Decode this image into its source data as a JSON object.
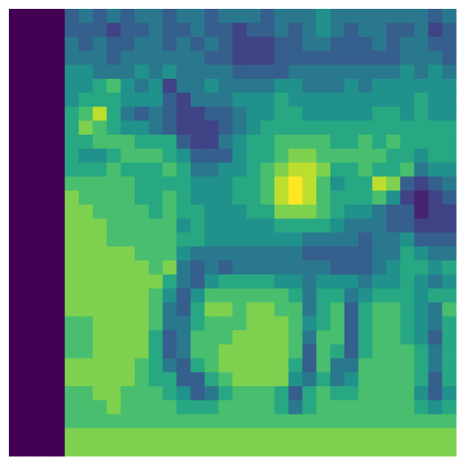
{
  "chart_data": {
    "type": "heatmap",
    "zlim": [
      0,
      1
    ],
    "colorscale": [
      "#440154",
      "#472d7b",
      "#3b528b",
      "#2c728e",
      "#21918c",
      "#28ae80",
      "#5ec962",
      "#addc30",
      "#fde725"
    ],
    "z": [
      [
        0,
        0,
        0,
        0,
        0.3,
        0.4,
        0.3,
        0.4,
        0.3,
        0.4,
        0.4,
        0.3,
        0.4,
        0.4,
        0.3,
        0.4,
        0.4,
        0.4,
        0.3,
        0.4,
        0.4,
        0.4,
        0.5,
        0.4,
        0.4,
        0.4,
        0.4,
        0.4,
        0.4,
        0.4,
        0.3,
        0.4
      ],
      [
        0,
        0,
        0,
        0,
        0.3,
        0.3,
        0.3,
        0.2,
        0.3,
        0.3,
        0.4,
        0.3,
        0.3,
        0.4,
        0.3,
        0.3,
        0.2,
        0.3,
        0.3,
        0.4,
        0.3,
        0.4,
        0.5,
        0.4,
        0.3,
        0.4,
        0.4,
        0.3,
        0.3,
        0.4,
        0.2,
        0.3
      ],
      [
        0,
        0,
        0,
        0,
        0.4,
        0.3,
        0.4,
        0.3,
        0.3,
        0.4,
        0.4,
        0.3,
        0.4,
        0.3,
        0.4,
        0.3,
        0.2,
        0.2,
        0.2,
        0.3,
        0.3,
        0.4,
        0.4,
        0.3,
        0.3,
        0.3,
        0.4,
        0.3,
        0.4,
        0.4,
        0.3,
        0.3
      ],
      [
        0,
        0,
        0,
        0,
        0.4,
        0.4,
        0.4,
        0.3,
        0.4,
        0.4,
        0.4,
        0.4,
        0.4,
        0.4,
        0.3,
        0.3,
        0.2,
        0.2,
        0.2,
        0.3,
        0.3,
        0.3,
        0.3,
        0.3,
        0.3,
        0.3,
        0.3,
        0.3,
        0.4,
        0.4,
        0.4,
        0.3
      ],
      [
        0,
        0,
        0,
        0,
        0.5,
        0.5,
        0.4,
        0.4,
        0.4,
        0.5,
        0.4,
        0.5,
        0.4,
        0.4,
        0.4,
        0.4,
        0.3,
        0.3,
        0.3,
        0.3,
        0.4,
        0.4,
        0.4,
        0.4,
        0.4,
        0.4,
        0.4,
        0.4,
        0.5,
        0.4,
        0.5,
        0.4
      ],
      [
        0,
        0,
        0,
        0,
        0.5,
        0.5,
        0.6,
        0.7,
        0.5,
        0.4,
        0.5,
        0.2,
        0.4,
        0.4,
        0.5,
        0.4,
        0.4,
        0.4,
        0.4,
        0.5,
        0.5,
        0.4,
        0.4,
        0.4,
        0.5,
        0.4,
        0.5,
        0.5,
        0.5,
        0.5,
        0.5,
        0.5
      ],
      [
        0,
        0,
        0,
        0,
        0.5,
        0.6,
        0.6,
        0.6,
        0.5,
        0.5,
        0.5,
        0.3,
        0.2,
        0.4,
        0.4,
        0.4,
        0.5,
        0.5,
        0.5,
        0.6,
        0.5,
        0.5,
        0.5,
        0.5,
        0.5,
        0.5,
        0.5,
        0.5,
        0.5,
        0.6,
        0.5,
        0.5
      ],
      [
        0,
        0,
        0,
        0,
        0.6,
        0.7,
        0.9,
        0.6,
        0.4,
        0.3,
        0.4,
        0.3,
        0.2,
        0.2,
        0.3,
        0.3,
        0.4,
        0.5,
        0.5,
        0.6,
        0.6,
        0.5,
        0.5,
        0.5,
        0.5,
        0.5,
        0.6,
        0.6,
        0.5,
        0.6,
        0.5,
        0.5
      ],
      [
        0,
        0,
        0,
        0,
        0.6,
        0.8,
        0.7,
        0.6,
        0.5,
        0.5,
        0.4,
        0.3,
        0.2,
        0.2,
        0.2,
        0.3,
        0.4,
        0.5,
        0.6,
        0.6,
        0.6,
        0.6,
        0.6,
        0.6,
        0.6,
        0.6,
        0.6,
        0.6,
        0.6,
        0.6,
        0.6,
        0.6
      ],
      [
        0,
        0,
        0,
        0,
        0.6,
        0.6,
        0.7,
        0.7,
        0.7,
        0.6,
        0.6,
        0.6,
        0.3,
        0.2,
        0.2,
        0.4,
        0.5,
        0.6,
        0.6,
        0.7,
        0.7,
        0.7,
        0.7,
        0.6,
        0.6,
        0.7,
        0.6,
        0.7,
        0.6,
        0.6,
        0.6,
        0.6
      ],
      [
        0,
        0,
        0,
        0,
        0.6,
        0.5,
        0.5,
        0.6,
        0.7,
        0.7,
        0.7,
        0.6,
        0.5,
        0.3,
        0.3,
        0.3,
        0.5,
        0.6,
        0.6,
        0.7,
        0.8,
        0.8,
        0.7,
        0.7,
        0.7,
        0.7,
        0.7,
        0.6,
        0.6,
        0.5,
        0.6,
        0.6
      ],
      [
        0,
        0,
        0,
        0,
        0.6,
        0.6,
        0.6,
        0.7,
        0.6,
        0.6,
        0.6,
        0.7,
        0.6,
        0.4,
        0.4,
        0.5,
        0.5,
        0.6,
        0.7,
        0.8,
        0.9,
        0.9,
        0.8,
        0.6,
        0.6,
        0.7,
        0.6,
        0.6,
        0.7,
        0.4,
        0.5,
        0.5
      ],
      [
        0,
        0,
        0,
        0,
        0.7,
        0.7,
        0.7,
        0.7,
        0.7,
        0.6,
        0.6,
        0.6,
        0.6,
        0.5,
        0.5,
        0.5,
        0.6,
        0.6,
        0.7,
        0.9,
        1,
        0.9,
        0.7,
        0.5,
        0.6,
        0.6,
        0.9,
        0.8,
        0.3,
        0.2,
        0.3,
        0.4
      ],
      [
        0,
        0,
        0,
        0,
        0.8,
        0.7,
        0.7,
        0.7,
        0.7,
        0.6,
        0.6,
        0.7,
        0.6,
        0.5,
        0.5,
        0.5,
        0.6,
        0.6,
        0.7,
        0.9,
        1,
        0.9,
        0.7,
        0.6,
        0.6,
        0.6,
        0.7,
        0.5,
        0.2,
        0.1,
        0.2,
        0.3
      ],
      [
        0,
        0,
        0,
        0,
        0.8,
        0.8,
        0.7,
        0.7,
        0.7,
        0.7,
        0.6,
        0.7,
        0.6,
        0.6,
        0.5,
        0.5,
        0.5,
        0.6,
        0.6,
        0.8,
        0.8,
        0.8,
        0.7,
        0.6,
        0.5,
        0.5,
        0.4,
        0.3,
        0.3,
        0.1,
        0.2,
        0.2
      ],
      [
        0,
        0,
        0,
        0,
        0.8,
        0.8,
        0.8,
        0.7,
        0.7,
        0.7,
        0.7,
        0.7,
        0.5,
        0.6,
        0.5,
        0.5,
        0.5,
        0.5,
        0.5,
        0.6,
        0.6,
        0.6,
        0.6,
        0.5,
        0.4,
        0.4,
        0.4,
        0.3,
        0.3,
        0.2,
        0.2,
        0.2
      ],
      [
        0,
        0,
        0,
        0,
        0.8,
        0.8,
        0.8,
        0.7,
        0.7,
        0.7,
        0.7,
        0.7,
        0.6,
        0.6,
        0.5,
        0.5,
        0.5,
        0.5,
        0.5,
        0.5,
        0.5,
        0.4,
        0.4,
        0.4,
        0.4,
        0.3,
        0.4,
        0.4,
        0.5,
        0.3,
        0.3,
        0.3
      ],
      [
        0,
        0,
        0,
        0,
        0.8,
        0.8,
        0.8,
        0.8,
        0.8,
        0.7,
        0.7,
        0.7,
        0.5,
        0.4,
        0.4,
        0.4,
        0.4,
        0.4,
        0.4,
        0.4,
        0.4,
        0.3,
        0.3,
        0.3,
        0.3,
        0.3,
        0.4,
        0.4,
        0.6,
        0.5,
        0.4,
        0.4
      ],
      [
        0,
        0,
        0,
        0,
        0.8,
        0.8,
        0.8,
        0.8,
        0.8,
        0.8,
        0.7,
        0.8,
        0.4,
        0.3,
        0.4,
        0.3,
        0.4,
        0.4,
        0.4,
        0.4,
        0.4,
        0.4,
        0.4,
        0.3,
        0.3,
        0.3,
        0.4,
        0.5,
        0.6,
        0.6,
        0.5,
        0.6
      ],
      [
        0,
        0,
        0,
        0,
        0.8,
        0.8,
        0.8,
        0.8,
        0.8,
        0.8,
        0.8,
        0.6,
        0.4,
        0.3,
        0.5,
        0.6,
        0.6,
        0.6,
        0.6,
        0.5,
        0.5,
        0.4,
        0.5,
        0.5,
        0.5,
        0.4,
        0.5,
        0.5,
        0.6,
        0.5,
        0.4,
        0.5
      ],
      [
        0,
        0,
        0,
        0,
        0.8,
        0.8,
        0.8,
        0.8,
        0.8,
        0.8,
        0.7,
        0.5,
        0.3,
        0.5,
        0.7,
        0.7,
        0.7,
        0.7,
        0.7,
        0.7,
        0.6,
        0.4,
        0.6,
        0.6,
        0.4,
        0.5,
        0.6,
        0.6,
        0.6,
        0.5,
        0.6,
        0.6
      ],
      [
        0,
        0,
        0,
        0,
        0.8,
        0.8,
        0.8,
        0.8,
        0.8,
        0.8,
        0.7,
        0.4,
        0.3,
        0.6,
        0.8,
        0.8,
        0.7,
        0.8,
        0.8,
        0.7,
        0.7,
        0.4,
        0.6,
        0.7,
        0.3,
        0.6,
        0.7,
        0.7,
        0.6,
        0.5,
        0.4,
        0.7
      ],
      [
        0,
        0,
        0,
        0,
        0.7,
        0.7,
        0.8,
        0.8,
        0.8,
        0.8,
        0.7,
        0.4,
        0.4,
        0.6,
        0.7,
        0.7,
        0.7,
        0.8,
        0.8,
        0.8,
        0.7,
        0.5,
        0.6,
        0.7,
        0.3,
        0.6,
        0.7,
        0.7,
        0.6,
        0.5,
        0.4,
        0.6
      ],
      [
        0,
        0,
        0,
        0,
        0.7,
        0.7,
        0.8,
        0.8,
        0.8,
        0.8,
        0.6,
        0.3,
        0.4,
        0.7,
        0.7,
        0.7,
        0.8,
        0.8,
        0.8,
        0.8,
        0.7,
        0.4,
        0.7,
        0.7,
        0.3,
        0.6,
        0.7,
        0.7,
        0.6,
        0.5,
        0.3,
        0.6
      ],
      [
        0,
        0,
        0,
        0,
        0.7,
        0.7,
        0.8,
        0.8,
        0.8,
        0.8,
        0.6,
        0.3,
        0.4,
        0.7,
        0.7,
        0.8,
        0.8,
        0.8,
        0.8,
        0.8,
        0.7,
        0.3,
        0.7,
        0.6,
        0.3,
        0.6,
        0.7,
        0.7,
        0.7,
        0.6,
        0.4,
        0.6
      ],
      [
        0,
        0,
        0,
        0,
        0.8,
        0.8,
        0.8,
        0.8,
        0.8,
        0.7,
        0.6,
        0.4,
        0.3,
        0.6,
        0.7,
        0.8,
        0.8,
        0.8,
        0.8,
        0.8,
        0.6,
        0.3,
        0.7,
        0.4,
        0.4,
        0.7,
        0.7,
        0.7,
        0.7,
        0.6,
        0.4,
        0.6
      ],
      [
        0,
        0,
        0,
        0,
        0.8,
        0.8,
        0.8,
        0.8,
        0.8,
        0.7,
        0.6,
        0.6,
        0.3,
        0.3,
        0.6,
        0.7,
        0.8,
        0.8,
        0.8,
        0.8,
        0.5,
        0.4,
        0.6,
        0.4,
        0.5,
        0.7,
        0.7,
        0.7,
        0.7,
        0.6,
        0.3,
        0.6
      ],
      [
        0,
        0,
        0,
        0,
        0.7,
        0.7,
        0.8,
        0.8,
        0.7,
        0.7,
        0.7,
        0.6,
        0.5,
        0.3,
        0.4,
        0.6,
        0.7,
        0.7,
        0.7,
        0.6,
        0.3,
        0.6,
        0.7,
        0.6,
        0.6,
        0.7,
        0.7,
        0.7,
        0.7,
        0.5,
        0.3,
        0.5
      ],
      [
        0,
        0,
        0,
        0,
        0.7,
        0.7,
        0.7,
        0.8,
        0.7,
        0.7,
        0.7,
        0.7,
        0.6,
        0.6,
        0.6,
        0.7,
        0.7,
        0.7,
        0.7,
        0.6,
        0.4,
        0.6,
        0.7,
        0.7,
        0.7,
        0.7,
        0.7,
        0.7,
        0.7,
        0.6,
        0.5,
        0.6
      ],
      [
        0,
        0,
        0,
        0,
        0.7,
        0.7,
        0.7,
        0.7,
        0.7,
        0.7,
        0.7,
        0.7,
        0.7,
        0.7,
        0.7,
        0.7,
        0.7,
        0.7,
        0.7,
        0.7,
        0.7,
        0.7,
        0.7,
        0.7,
        0.7,
        0.7,
        0.7,
        0.7,
        0.7,
        0.7,
        0.7,
        0.7
      ],
      [
        0,
        0,
        0,
        0,
        0.8,
        0.8,
        0.8,
        0.8,
        0.8,
        0.8,
        0.8,
        0.8,
        0.8,
        0.8,
        0.8,
        0.8,
        0.8,
        0.8,
        0.8,
        0.8,
        0.8,
        0.8,
        0.8,
        0.8,
        0.8,
        0.8,
        0.8,
        0.8,
        0.8,
        0.8,
        0.8,
        0.8
      ],
      [
        0,
        0,
        0,
        0,
        0.8,
        0.8,
        0.8,
        0.8,
        0.8,
        0.8,
        0.8,
        0.8,
        0.8,
        0.8,
        0.8,
        0.8,
        0.8,
        0.8,
        0.8,
        0.8,
        0.8,
        0.8,
        0.8,
        0.8,
        0.8,
        0.8,
        0.8,
        0.8,
        0.8,
        0.8,
        0.8,
        0.8
      ]
    ]
  }
}
